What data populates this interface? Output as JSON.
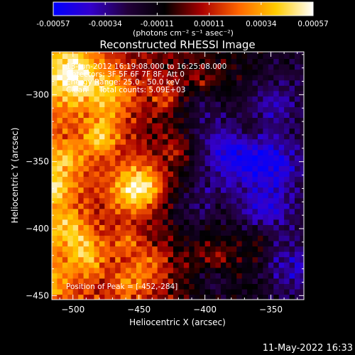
{
  "colorbar": {
    "ticks": [
      "-0.00057",
      "-0.00034",
      "-0.00011",
      "0.00011",
      "0.00034",
      "0.00057"
    ],
    "units": "(photons cm⁻² s⁻¹ asec⁻²)",
    "colormap": [
      "#0000ff",
      "#3300cc",
      "#22003a",
      "#000000",
      "#aa0000",
      "#ff6600",
      "#ffcc00",
      "#ffffff"
    ]
  },
  "chart_data": {
    "type": "heatmap",
    "title": "Reconstructed RHESSI Image",
    "xlabel": "Heliocentric X (arcsec)",
    "ylabel": "Heliocentric Y (arcsec)",
    "xlim": [
      -516,
      -325
    ],
    "ylim": [
      -453,
      -268
    ],
    "xticks": [
      -500,
      -450,
      -400,
      -350
    ],
    "yticks": [
      -300,
      -350,
      -400,
      -450
    ],
    "xtick_labels": [
      "−500",
      "−450",
      "−400",
      "−350"
    ],
    "ytick_labels": [
      "−300",
      "−350",
      "−400",
      "−450"
    ],
    "annotations": [
      "13-Jun-2012 16:19:08.000 to 16:25:08.000",
      "Detectors: 3F 5F 6F 7F 8F, Att 0",
      "Energy Range: 25.0 - 50.0 keV",
      "Clean     Total counts: 5.09E+03"
    ],
    "peak_label": "Position of Peak = [-452,-284]",
    "peak": [
      -452,
      -284
    ],
    "value_range": [
      -0.00057,
      0.00057
    ],
    "grid": false
  },
  "footer": {
    "timestamp": "11-May-2022 16:33"
  }
}
